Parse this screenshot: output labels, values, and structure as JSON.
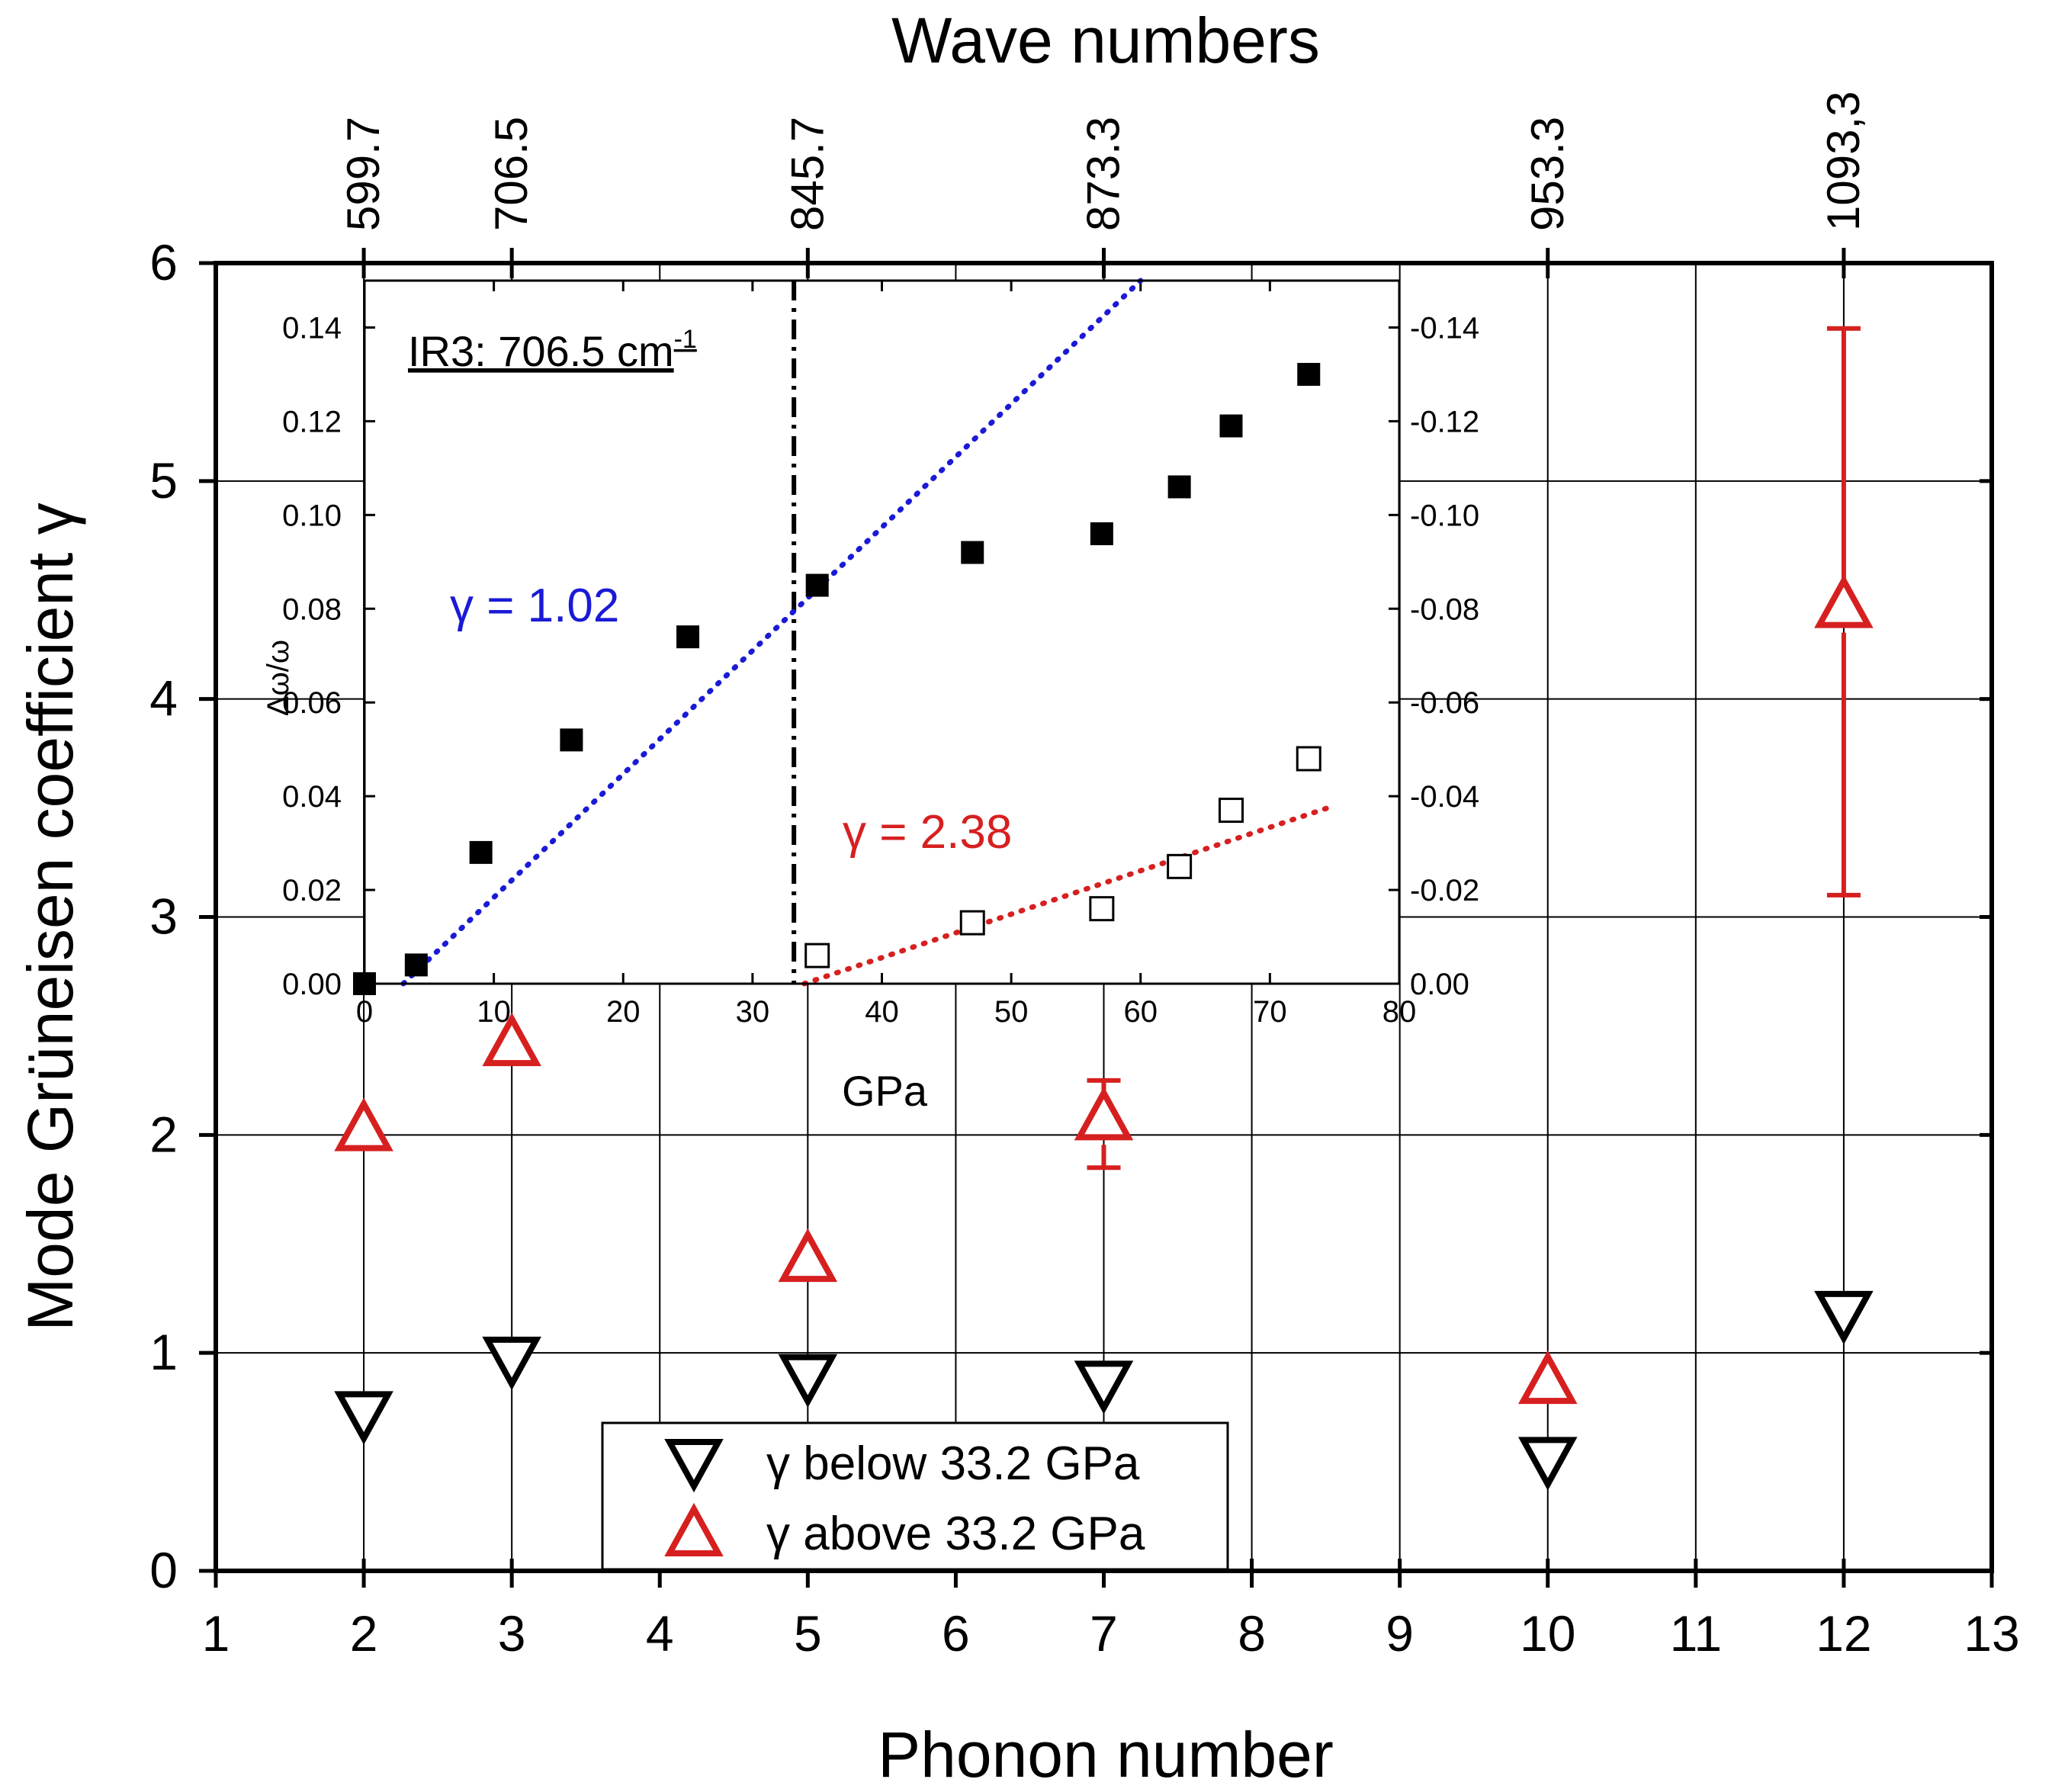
{
  "chart_data": {
    "main": {
      "type": "scatter",
      "xlabel": "Phonon number",
      "ylabel": "Mode Grüneisen coefficient γ",
      "top_axis_label": "Wave numbers",
      "xlim": [
        1,
        13
      ],
      "ylim": [
        0,
        6
      ],
      "x_ticks": [
        "1",
        "2",
        "3",
        "4",
        "5",
        "6",
        "7",
        "8",
        "9",
        "10",
        "11",
        "12",
        "13"
      ],
      "y_ticks": [
        "0",
        "1",
        "2",
        "3",
        "4",
        "5",
        "6"
      ],
      "top_ticks": [
        {
          "x": 2,
          "label": "599.7"
        },
        {
          "x": 3,
          "label": "706.5"
        },
        {
          "x": 5,
          "label": "845.7"
        },
        {
          "x": 7,
          "label": "873.3"
        },
        {
          "x": 10,
          "label": "953.3"
        },
        {
          "x": 12,
          "label": "1093,3"
        }
      ],
      "series": [
        {
          "name": "γ below 33.2 GPa",
          "color": "#000000",
          "marker": "triangle-down",
          "points": [
            {
              "x": 2,
              "y": 0.73
            },
            {
              "x": 3,
              "y": 0.98
            },
            {
              "x": 5,
              "y": 0.9
            },
            {
              "x": 7,
              "y": 0.87
            },
            {
              "x": 10,
              "y": 0.52
            },
            {
              "x": 12,
              "y": 1.19
            }
          ]
        },
        {
          "name": "γ above 33.2 GPa",
          "color": "#d62020",
          "marker": "triangle-up",
          "points": [
            {
              "x": 2,
              "y": 2.02
            },
            {
              "x": 3,
              "y": 2.41
            },
            {
              "x": 5,
              "y": 1.42
            },
            {
              "x": 7,
              "y": 2.07,
              "err_low": 1.85,
              "err_high": 2.25
            },
            {
              "x": 10,
              "y": 0.86
            },
            {
              "x": 12,
              "y": 4.42,
              "err_low": 3.1,
              "err_high": 5.7
            }
          ]
        }
      ],
      "legend": {
        "placement": "bottom-center",
        "entries": [
          "γ below 33.2 GPa",
          "γ above 33.2 GPa"
        ]
      }
    },
    "inset": {
      "type": "scatter",
      "title": "IR3: 706.5 cm",
      "title_sup": "-1",
      "xlabel": "GPa",
      "ylabel": "Δω/ω",
      "xlim": [
        0,
        80
      ],
      "ylim": [
        0,
        0.15
      ],
      "x_ticks": [
        "0",
        "10",
        "20",
        "30",
        "40",
        "50",
        "60",
        "70",
        "80"
      ],
      "y_ticks_left": [
        "0.00",
        "0.02",
        "0.04",
        "0.06",
        "0.08",
        "0.10",
        "0.12",
        "0.14"
      ],
      "y_ticks_right": [
        "0.00",
        "-0.02",
        "-0.04",
        "-0.06",
        "-0.08",
        "-0.10",
        "-0.12",
        "-0.14"
      ],
      "transition_pressure": 33.2,
      "filled_squares": [
        {
          "x": 0,
          "y": 0.0
        },
        {
          "x": 4,
          "y": 0.004
        },
        {
          "x": 9,
          "y": 0.028
        },
        {
          "x": 16,
          "y": 0.052
        },
        {
          "x": 25,
          "y": 0.074
        },
        {
          "x": 35,
          "y": 0.085
        },
        {
          "x": 47,
          "y": 0.092
        },
        {
          "x": 57,
          "y": 0.096
        },
        {
          "x": 63,
          "y": 0.106
        },
        {
          "x": 67,
          "y": 0.119
        },
        {
          "x": 73,
          "y": 0.13
        }
      ],
      "open_squares": [
        {
          "x": 35,
          "y": 0.006
        },
        {
          "x": 47,
          "y": 0.013
        },
        {
          "x": 57,
          "y": 0.016
        },
        {
          "x": 63,
          "y": 0.025
        },
        {
          "x": 67,
          "y": 0.037
        },
        {
          "x": 73,
          "y": 0.048
        }
      ],
      "fits": [
        {
          "label": "γ = 1.02",
          "color": "#1a1ad6",
          "from": [
            3,
            0.0
          ],
          "to": [
            60,
            0.15
          ]
        },
        {
          "label": "γ = 2.38",
          "color": "#d62020",
          "from": [
            34,
            0.0
          ],
          "to": [
            75,
            0.038
          ]
        }
      ]
    }
  }
}
